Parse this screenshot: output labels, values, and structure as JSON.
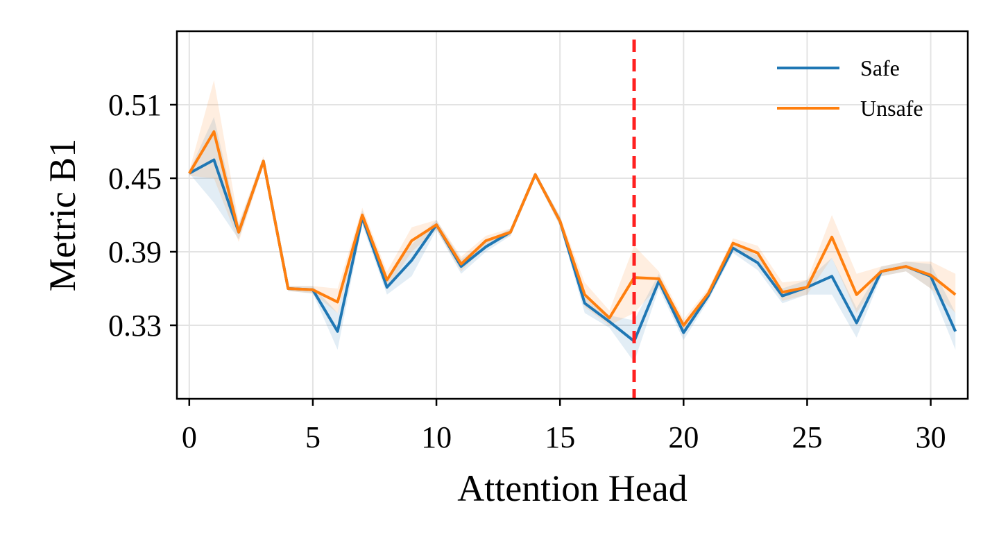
{
  "chart_data": {
    "type": "line",
    "title": "",
    "xlabel": "Attention Head",
    "ylabel": "Metric B1",
    "xlim": [
      -0.5,
      31.5
    ],
    "ylim": [
      0.27,
      0.57
    ],
    "xticks": [
      0,
      5,
      10,
      15,
      20,
      25,
      30
    ],
    "xtick_labels": [
      "0",
      "5",
      "10",
      "15",
      "20",
      "25",
      "30"
    ],
    "yticks": [
      0.33,
      0.39,
      0.45,
      0.51
    ],
    "ytick_labels": [
      "0.33",
      "0.39",
      "0.45",
      "0.51"
    ],
    "grid": true,
    "legend_position": "top-right",
    "x": [
      0,
      1,
      2,
      3,
      4,
      5,
      6,
      7,
      8,
      9,
      10,
      11,
      12,
      13,
      14,
      15,
      16,
      17,
      18,
      19,
      20,
      21,
      22,
      23,
      24,
      25,
      26,
      27,
      28,
      29,
      30,
      31
    ],
    "series": [
      {
        "name": "Safe",
        "color": "#1f77b4",
        "values": [
          0.454,
          0.465,
          0.406,
          0.464,
          0.36,
          0.359,
          0.325,
          0.418,
          0.361,
          0.383,
          0.412,
          0.378,
          0.394,
          0.406,
          0.453,
          0.415,
          0.348,
          0.333,
          0.317,
          0.366,
          0.324,
          0.354,
          0.393,
          0.381,
          0.354,
          0.361,
          0.37,
          0.332,
          0.374,
          0.378,
          0.37,
          0.325
        ],
        "lower": [
          0.454,
          0.43,
          0.4,
          0.462,
          0.358,
          0.356,
          0.31,
          0.412,
          0.355,
          0.37,
          0.408,
          0.372,
          0.39,
          0.403,
          0.451,
          0.411,
          0.34,
          0.328,
          0.3,
          0.36,
          0.318,
          0.35,
          0.389,
          0.375,
          0.348,
          0.355,
          0.355,
          0.32,
          0.37,
          0.374,
          0.36,
          0.31
        ],
        "upper": [
          0.456,
          0.5,
          0.412,
          0.466,
          0.362,
          0.362,
          0.34,
          0.424,
          0.367,
          0.396,
          0.416,
          0.384,
          0.398,
          0.409,
          0.455,
          0.419,
          0.356,
          0.338,
          0.334,
          0.372,
          0.33,
          0.358,
          0.397,
          0.387,
          0.36,
          0.367,
          0.385,
          0.344,
          0.378,
          0.382,
          0.38,
          0.34
        ]
      },
      {
        "name": "Unsafe",
        "color": "#ff7f0e",
        "values": [
          0.454,
          0.488,
          0.406,
          0.464,
          0.36,
          0.359,
          0.349,
          0.42,
          0.367,
          0.399,
          0.412,
          0.38,
          0.399,
          0.406,
          0.453,
          0.415,
          0.355,
          0.336,
          0.369,
          0.368,
          0.33,
          0.356,
          0.397,
          0.389,
          0.357,
          0.361,
          0.402,
          0.355,
          0.374,
          0.378,
          0.371,
          0.355
        ],
        "lower": [
          0.452,
          0.45,
          0.398,
          0.46,
          0.358,
          0.356,
          0.34,
          0.414,
          0.36,
          0.39,
          0.408,
          0.374,
          0.395,
          0.403,
          0.451,
          0.411,
          0.345,
          0.33,
          0.34,
          0.362,
          0.325,
          0.352,
          0.393,
          0.383,
          0.35,
          0.355,
          0.385,
          0.34,
          0.37,
          0.374,
          0.36,
          0.34
        ],
        "upper": [
          0.456,
          0.53,
          0.414,
          0.468,
          0.362,
          0.362,
          0.36,
          0.426,
          0.374,
          0.41,
          0.416,
          0.386,
          0.403,
          0.409,
          0.455,
          0.419,
          0.365,
          0.342,
          0.395,
          0.374,
          0.335,
          0.36,
          0.401,
          0.395,
          0.365,
          0.367,
          0.42,
          0.372,
          0.378,
          0.382,
          0.382,
          0.372
        ]
      }
    ],
    "vline": {
      "x": 18,
      "color": "#ff2020",
      "style": "dashed"
    }
  }
}
